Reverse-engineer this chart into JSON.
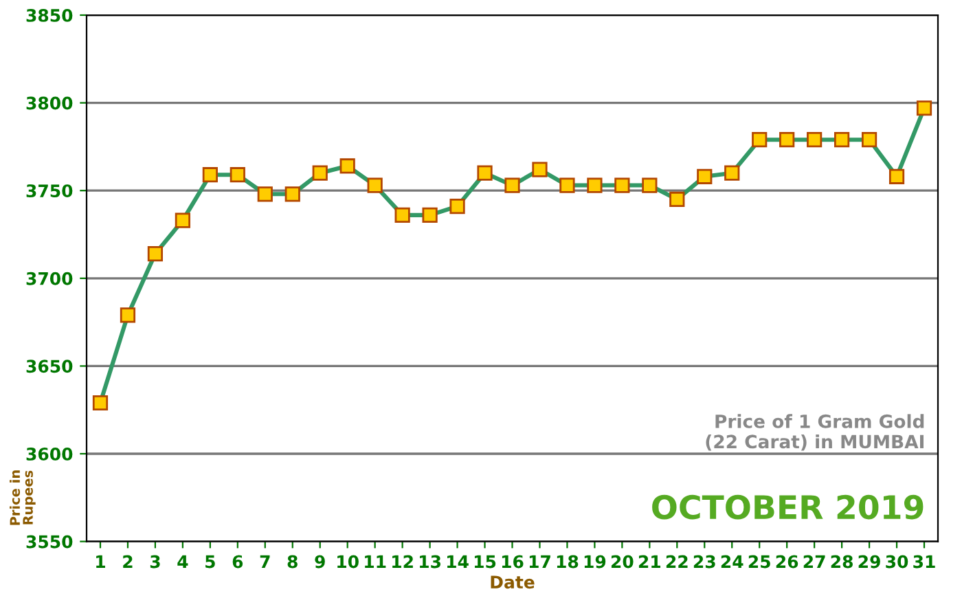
{
  "chart_data": {
    "type": "line",
    "title": "Price of 1 Gram Gold\n(22 Carat) in MUMBAI",
    "subtitle": "OCTOBER 2019",
    "xlabel": "Date",
    "ylabel": "Price in\nRupees",
    "categories": [
      "1",
      "2",
      "3",
      "4",
      "5",
      "6",
      "7",
      "8",
      "9",
      "10",
      "11",
      "12",
      "13",
      "14",
      "15",
      "16",
      "17",
      "18",
      "19",
      "20",
      "21",
      "22",
      "23",
      "24",
      "25",
      "26",
      "27",
      "28",
      "29",
      "30",
      "31"
    ],
    "series": [
      {
        "color": "#339966",
        "values": [
          3629,
          3679,
          3714,
          3733,
          3759,
          3759,
          3748,
          3748,
          3760,
          3764,
          3753,
          3736,
          3736,
          3741,
          3760,
          3753,
          3762,
          3753,
          3753,
          3753,
          3753,
          3745,
          3758,
          3760,
          3779,
          3779,
          3779,
          3779,
          3779,
          3758,
          3797
        ]
      }
    ],
    "ylim": [
      3550,
      3850
    ],
    "yticks": [
      3550,
      3600,
      3650,
      3700,
      3750,
      3800,
      3850
    ],
    "grid": "y",
    "marker": "square",
    "line_style": "solid"
  }
}
